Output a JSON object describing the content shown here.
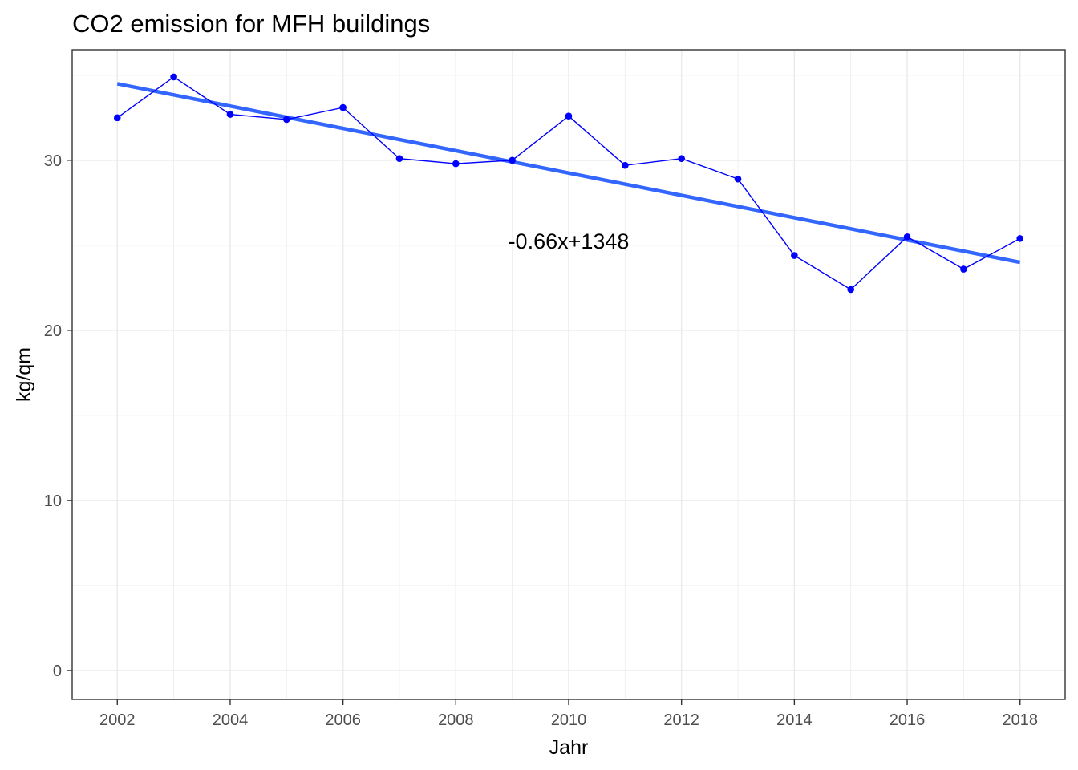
{
  "chart_data": {
    "type": "line",
    "title": "CO2 emission for MFH buildings",
    "xlabel": "Jahr",
    "ylabel": "kg/qm",
    "xlim": [
      2001.2,
      2018.8
    ],
    "ylim": [
      -1.7,
      36.5
    ],
    "x_ticks": [
      2002,
      2004,
      2006,
      2008,
      2010,
      2012,
      2014,
      2016,
      2018
    ],
    "y_ticks": [
      0,
      10,
      20,
      30
    ],
    "grid": true,
    "legend": "none",
    "series": [
      {
        "x": [
          2002,
          2003,
          2004,
          2005,
          2006,
          2007,
          2008,
          2009,
          2010,
          2011,
          2012,
          2013,
          2014,
          2015,
          2016,
          2017,
          2018
        ],
        "values": [
          32.5,
          34.9,
          32.7,
          32.4,
          33.1,
          30.1,
          29.8,
          30.0,
          32.6,
          29.7,
          30.1,
          28.9,
          24.4,
          22.4,
          25.5,
          23.6,
          25.4
        ],
        "color": "#0000ff"
      }
    ],
    "trendline": {
      "x": [
        2002,
        2018
      ],
      "values": [
        34.5,
        24.0
      ],
      "color": "#3366ff"
    },
    "annotation": {
      "text": "-0.66x+1348",
      "x": 2010,
      "y": 24.8
    },
    "panel_border_color": "#333333",
    "grid_color": "#ebebeb"
  }
}
